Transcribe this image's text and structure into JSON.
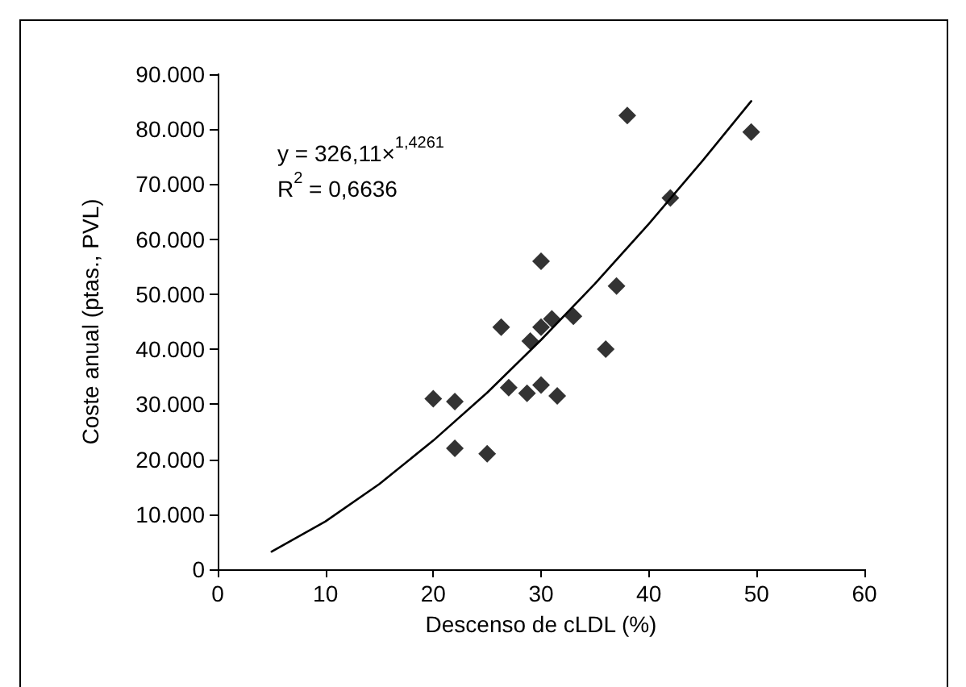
{
  "chart_data": {
    "type": "scatter",
    "xlabel": "Descenso de cLDL (%)",
    "ylabel": "Coste anual (ptas., PVL)",
    "xlim": [
      0,
      60
    ],
    "xticks": [
      0,
      10,
      20,
      30,
      40,
      50,
      60
    ],
    "ylim": [
      0,
      90000
    ],
    "yticks": [
      {
        "value": 0,
        "label": "0"
      },
      {
        "value": 10000,
        "label": "10.000"
      },
      {
        "value": 20000,
        "label": "20.000"
      },
      {
        "value": 30000,
        "label": "30.000"
      },
      {
        "value": 40000,
        "label": "40.000"
      },
      {
        "value": 50000,
        "label": "50.000"
      },
      {
        "value": 60000,
        "label": "60.000"
      },
      {
        "value": 70000,
        "label": "70.000"
      },
      {
        "value": 80000,
        "label": "80.000"
      },
      {
        "value": 90000,
        "label": "90.000"
      }
    ],
    "grid": false,
    "marker": "diamond",
    "annotations": [
      "y = 326,11×$^{1,4261}$",
      "R$^{2}$ = 0,6636"
    ],
    "series": [
      {
        "color": "#000000",
        "x": [
          20,
          22,
          22,
          25,
          26.3,
          27,
          29,
          28.7,
          30,
          30,
          30,
          31,
          31.5,
          33,
          36,
          37,
          38,
          42,
          49.5
        ],
        "values": [
          31000,
          30500,
          22000,
          21000,
          44000,
          33000,
          41500,
          32000,
          56000,
          33500,
          44000,
          45500,
          31500,
          46000,
          40000,
          51500,
          82500,
          67500,
          79500
        ]
      },
      {
        "type": "line",
        "color": "#000000",
        "marker": "none",
        "x": [
          5,
          10,
          15,
          20,
          25,
          30,
          35,
          40,
          45,
          49.5
        ],
        "values": [
          3200,
          8700,
          15500,
          23400,
          32100,
          41700,
          51900,
          62800,
          74300,
          85100
        ]
      }
    ]
  }
}
